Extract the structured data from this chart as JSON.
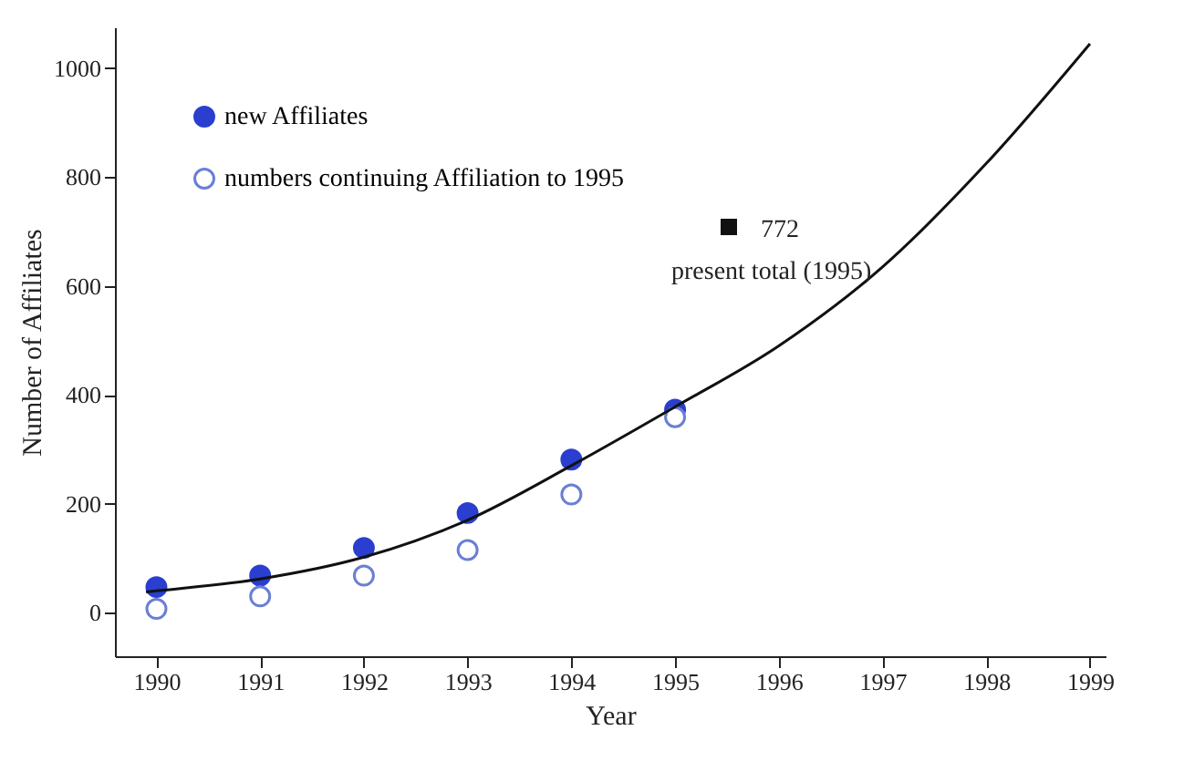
{
  "chart_data": {
    "type": "scatter",
    "xlabel": "Year",
    "ylabel": "Number of Affiliates",
    "x": [
      1990,
      1991,
      1992,
      1993,
      1994,
      1995
    ],
    "xlim": [
      1989.6,
      1999.15
    ],
    "xticks": [
      1990,
      1991,
      1992,
      1993,
      1994,
      1995,
      1996,
      1997,
      1998,
      1999
    ],
    "ylim": [
      -80,
      1075
    ],
    "yticks": [
      0,
      200,
      400,
      600,
      800,
      1000
    ],
    "marker": "circle",
    "legend": "top left",
    "grid": false,
    "series": [
      {
        "name": "new Affiliates",
        "color": "#2a3fcf",
        "values": [
          47,
          68,
          119,
          183,
          281,
          373
        ]
      },
      {
        "name": "numbers continuing Affiliation to 1995",
        "color": "#6a7fd6",
        "values": [
          7,
          30,
          68,
          115,
          217,
          359
        ]
      },
      {
        "type": "line",
        "marker": "none",
        "color": "#111111",
        "x": [
          1989.9,
          1990,
          1991,
          1992,
          1993,
          1994,
          1995,
          1996,
          1997,
          1998,
          1999
        ],
        "values": [
          38,
          40,
          62,
          102,
          170,
          270,
          378,
          490,
          635,
          825,
          1045
        ]
      }
    ],
    "annotations": [
      "772",
      "present total (1995)"
    ]
  }
}
